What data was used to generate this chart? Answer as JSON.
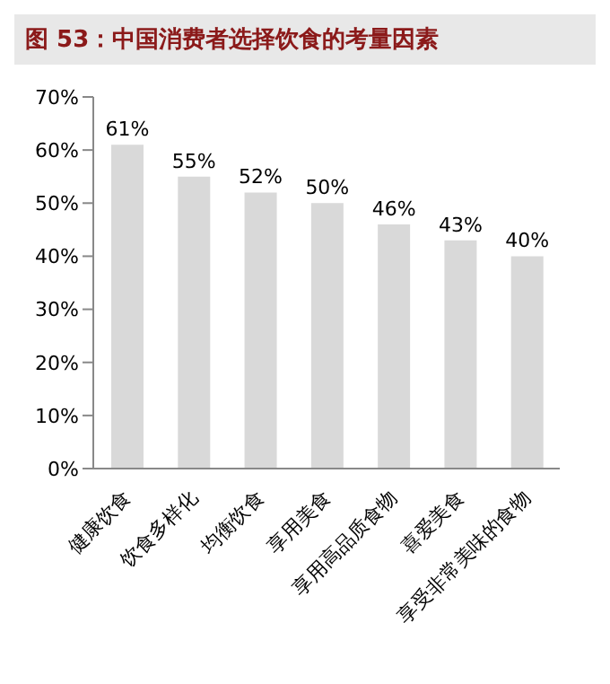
{
  "chart_data": {
    "type": "bar",
    "title": "图 53：中国消费者选择饮食的考量因素",
    "categories": [
      "健康饮食",
      "饮食多样化",
      "均衡饮食",
      "享用美食",
      "享用高品质食物",
      "喜爱美食",
      "享受非常美味的食物"
    ],
    "values": [
      61,
      55,
      52,
      50,
      46,
      43,
      40
    ],
    "value_labels": [
      "61%",
      "55%",
      "52%",
      "50%",
      "46%",
      "43%",
      "40%"
    ],
    "color": "#d9d9d9",
    "ylim": [
      0,
      70
    ],
    "yticks": [
      {
        "value": 0,
        "label": "0%"
      },
      {
        "value": 10,
        "label": "10%"
      },
      {
        "value": 20,
        "label": "20%"
      },
      {
        "value": 30,
        "label": "30%"
      },
      {
        "value": 40,
        "label": "40%"
      },
      {
        "value": 50,
        "label": "50%"
      },
      {
        "value": 60,
        "label": "60%"
      },
      {
        "value": 70,
        "label": "70%"
      }
    ],
    "grid": false,
    "legend": false
  }
}
